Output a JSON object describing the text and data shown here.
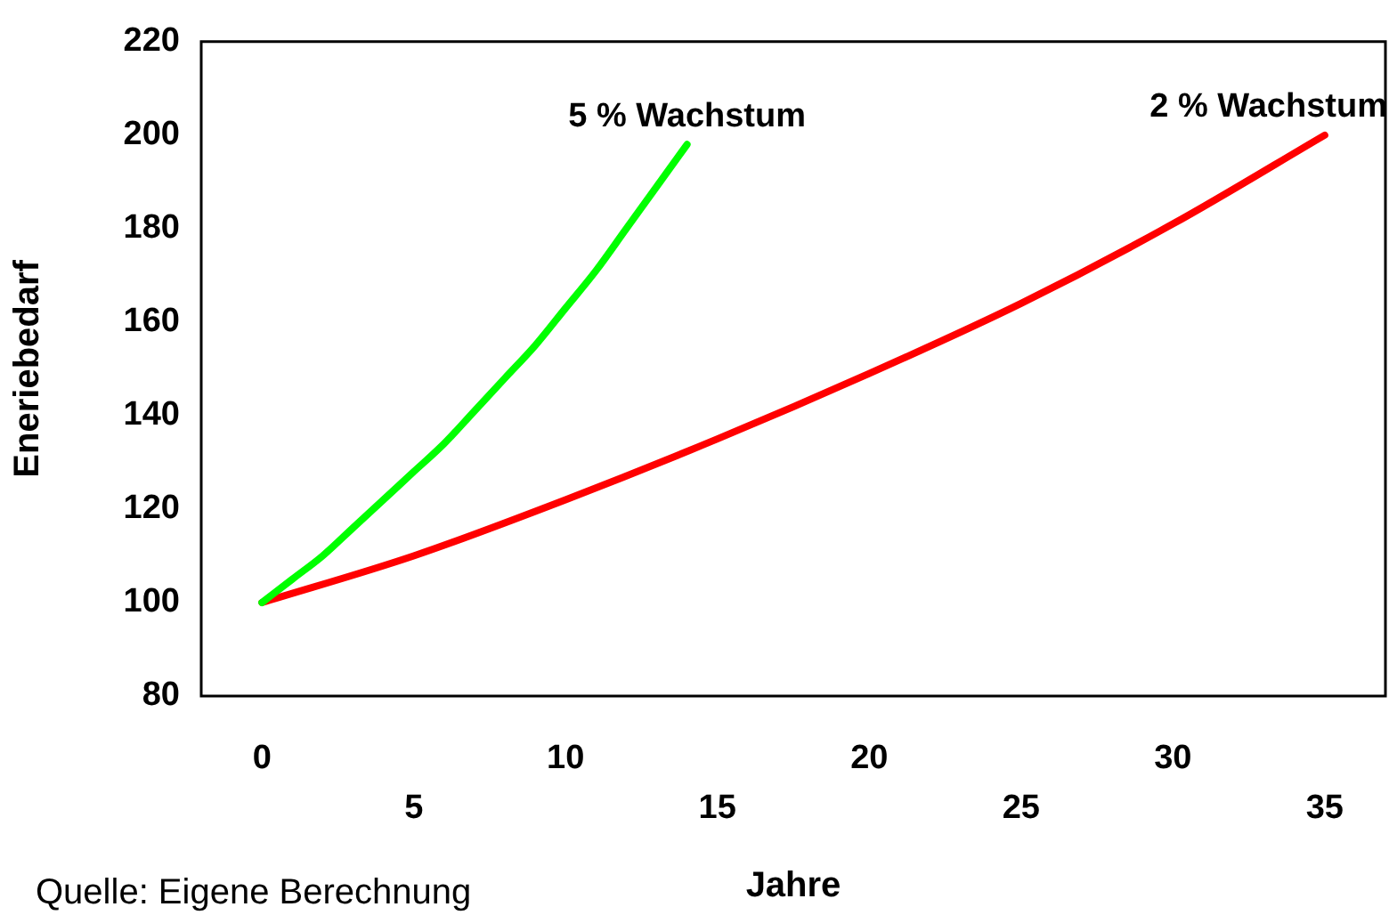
{
  "chart_data": {
    "type": "line",
    "xlabel": "Jahre",
    "ylabel": "Eneriebedarf",
    "annotations": [
      "Quelle: Eigene Berechnung"
    ],
    "xlim": [
      -2,
      37
    ],
    "xticks": [
      0,
      10,
      20,
      30
    ],
    "x2lim": [
      -2,
      37
    ],
    "x2ticks": [
      5,
      15,
      25,
      35
    ],
    "ylim": [
      80,
      220
    ],
    "yticks": [
      80,
      100,
      120,
      140,
      160,
      180,
      200,
      220
    ],
    "grid": false,
    "legend": false,
    "marker": "none",
    "line_style": "solid",
    "series": [
      {
        "name": "5 % Wachstum",
        "color": "#00ff00",
        "x": [
          0,
          1,
          2,
          3,
          4,
          5,
          6,
          7,
          8,
          9,
          10,
          11,
          12,
          13,
          14
        ],
        "values": [
          100,
          105,
          110,
          116,
          122,
          128,
          134,
          141,
          148,
          155,
          163,
          171,
          180,
          189,
          198
        ]
      },
      {
        "name": "2 % Wachstum",
        "color": "#ff0000",
        "x": [
          0,
          5,
          10,
          15,
          20,
          25,
          30,
          35
        ],
        "values": [
          100,
          110,
          122,
          135,
          149,
          164,
          181,
          200
        ]
      }
    ]
  }
}
